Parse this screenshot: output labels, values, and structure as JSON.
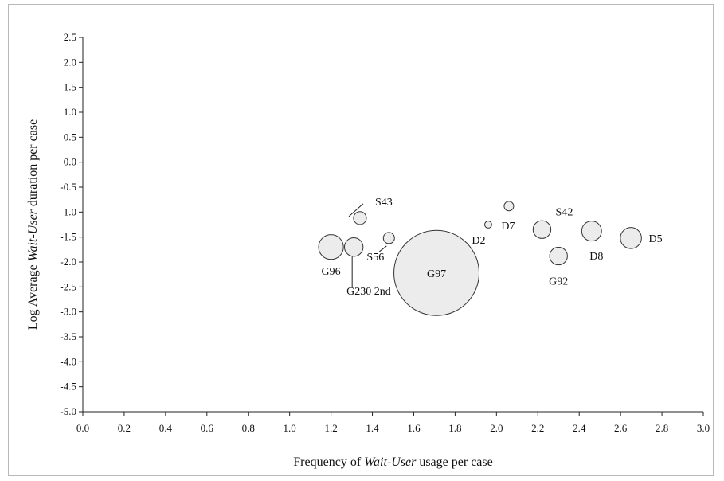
{
  "chart_data": {
    "type": "bubble",
    "title": "",
    "xlabel": {
      "prefix": "Frequency of ",
      "italic": "Wait-User",
      "suffix": "  usage per case"
    },
    "ylabel": {
      "prefix": "Log Average ",
      "italic": "Wait-User",
      "suffix": " duration per case"
    },
    "xlim": [
      0.0,
      3.0
    ],
    "ylim": [
      -5.0,
      2.5
    ],
    "x_ticks": [
      0.0,
      0.2,
      0.4,
      0.6,
      0.8,
      1.0,
      1.2,
      1.4,
      1.6,
      1.8,
      2.0,
      2.2,
      2.4,
      2.6,
      2.8,
      3.0
    ],
    "y_ticks": [
      2.5,
      2.0,
      1.5,
      1.0,
      0.5,
      0.0,
      -0.5,
      -1.0,
      -1.5,
      -2.0,
      -2.5,
      -3.0,
      -3.5,
      -4.0,
      -4.5,
      -5.0
    ],
    "x_tick_labels": [
      "0.0",
      "0.2",
      "0.4",
      "0.6",
      "0.8",
      "1.0",
      "1.2",
      "1.4",
      "1.6",
      "1.8",
      "2.0",
      "2.2",
      "2.4",
      "2.6",
      "2.8",
      "3.0"
    ],
    "y_tick_labels": [
      "2.5",
      "2.0",
      "1.5",
      "1.0",
      "0.5",
      "0.0",
      "-0.5",
      "-1.0",
      "-1.5",
      "-2.0",
      "-2.5",
      "-3.0",
      "-3.5",
      "-4.0",
      "-4.5",
      "-5.0"
    ],
    "grid": false,
    "bubble_color": "#ececec",
    "bubble_stroke": "#333333",
    "bubbles": [
      {
        "label": "G96",
        "x": 1.2,
        "y": -1.7,
        "r": 0.06
      },
      {
        "label": "G230 2nd",
        "x": 1.31,
        "y": -1.7,
        "r": 0.045
      },
      {
        "label": "S43",
        "x": 1.34,
        "y": -1.12,
        "r": 0.031
      },
      {
        "label": "S56",
        "x": 1.48,
        "y": -1.52,
        "r": 0.027
      },
      {
        "label": "G97",
        "x": 1.71,
        "y": -2.22,
        "r": 0.206
      },
      {
        "label": "D2",
        "x": 1.96,
        "y": -1.25,
        "r": 0.017
      },
      {
        "label": "D7",
        "x": 2.06,
        "y": -0.88,
        "r": 0.023
      },
      {
        "label": "S42",
        "x": 2.22,
        "y": -1.35,
        "r": 0.043
      },
      {
        "label": "G92",
        "x": 2.3,
        "y": -1.88,
        "r": 0.043
      },
      {
        "label": "D8",
        "x": 2.46,
        "y": -1.38,
        "r": 0.048
      },
      {
        "label": "D5",
        "x": 2.65,
        "y": -1.52,
        "r": 0.051
      }
    ]
  }
}
